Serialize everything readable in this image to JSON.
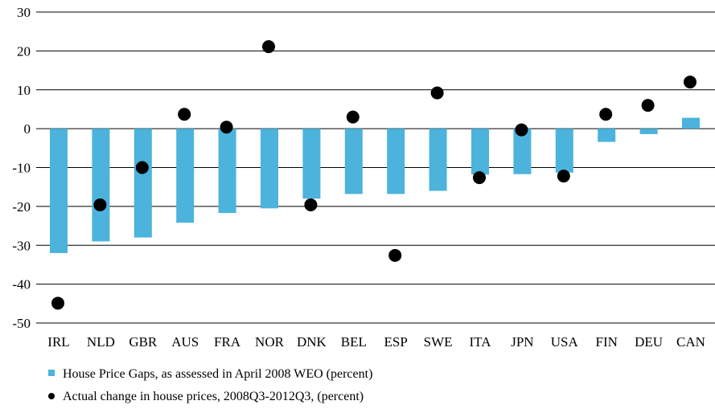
{
  "chart_data": {
    "type": "bar",
    "categories": [
      "IRL",
      "NLD",
      "GBR",
      "AUS",
      "FRA",
      "NOR",
      "DNK",
      "BEL",
      "ESP",
      "SWE",
      "ITA",
      "JPN",
      "USA",
      "FIN",
      "DEU",
      "CAN"
    ],
    "series": [
      {
        "name": "House Price Gaps, as assessed in April 2008 WEO (percent)",
        "kind": "bar",
        "color": "#4BB3DC",
        "values": [
          -32,
          -29,
          -28,
          -24.2,
          -21.7,
          -20.5,
          -18,
          -16.8,
          -16.8,
          -16,
          -11.8,
          -11.7,
          -11.3,
          -3.4,
          -1.4,
          2.8
        ]
      },
      {
        "name": "Actual change in house prices,  2008Q3-2012Q3, (percent)",
        "kind": "scatter",
        "color": "#000000",
        "values": [
          -44.9,
          -19.6,
          -10,
          3.7,
          0.4,
          21.1,
          -19.6,
          3,
          -32.6,
          9.2,
          -12.6,
          -0.3,
          -12.2,
          3.7,
          6,
          12
        ]
      }
    ],
    "yticks": [
      30,
      20,
      10,
      0,
      -10,
      -20,
      -30,
      -40,
      -50
    ],
    "ylim": [
      -50,
      30
    ],
    "grid": true,
    "legend_position": "bottom-left"
  }
}
